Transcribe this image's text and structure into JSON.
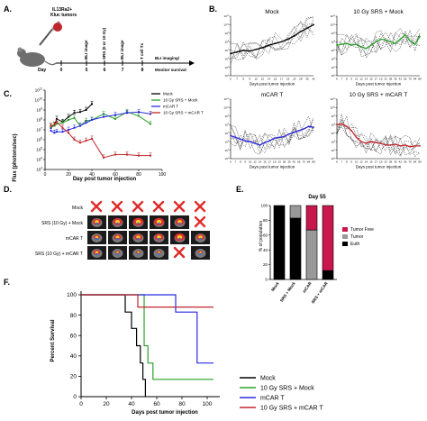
{
  "panels": {
    "A": {
      "letter": "A.",
      "cells": "IL13Ra2+",
      "tumors": "Kluc tumors",
      "day_label": "Day",
      "days": [
        "0",
        "5",
        "6",
        "7",
        "8"
      ],
      "events": [
        "BLI image",
        "SRS (0 or 10 Gy)",
        "BLI image",
        "T cell Tx"
      ],
      "monitor_1": "BLI imaging/",
      "monitor_2": "Monitor survival"
    },
    "B": {
      "letter": "B.",
      "xlabel": "Days post tumor injection",
      "xticks": [
        "6",
        "7",
        "8",
        "9",
        "10",
        "12",
        "14",
        "15",
        "17",
        "19",
        "23",
        "28",
        "35",
        "42"
      ],
      "xticks_long": [
        "6",
        "7",
        "8",
        "9",
        "10",
        "12",
        "14",
        "15",
        "17",
        "19",
        "23",
        "28",
        "35",
        "42",
        "56",
        "70",
        "84",
        "89"
      ],
      "yticks": [
        "10^4",
        "10^5",
        "10^6",
        "10^7",
        "10^8",
        "10^9",
        "10^10",
        "10^11"
      ]
    },
    "C": {
      "letter": "C.",
      "ylabel": "Flux (photons/sec)",
      "xlabel": "Day post tumor injection",
      "yticks": [
        "10^11",
        "10^10",
        "10^9",
        "10^8",
        "10^7",
        "10^6",
        "10^5",
        "10^4",
        "10^3"
      ],
      "xticks": [
        "0",
        "20",
        "40",
        "60",
        "80",
        "100"
      ]
    },
    "D": {
      "letter": "D.",
      "rows": [
        "Mock",
        "SRS (10 Gy) + Mock",
        "mCAR T",
        "SRS (10 Gy) + mCAR T"
      ]
    },
    "E": {
      "letter": "E.",
      "title": "Day 55",
      "ylabel": "% of population",
      "yticks": [
        "100",
        "80",
        "60",
        "40",
        "20",
        "0"
      ],
      "legend": [
        "Tumor Free",
        "Tumor",
        "Euth"
      ]
    },
    "F": {
      "letter": "F.",
      "ylabel": "Percent Survival",
      "xlabel": "Days post tumor injection",
      "yticks": [
        "100",
        "80",
        "60",
        "40",
        "20",
        "0"
      ],
      "xticks": [
        "0",
        "20",
        "40",
        "60",
        "80",
        "100"
      ]
    }
  },
  "colors": {
    "mock": "#000000",
    "srs_mock": "#2ca02c",
    "mcar": "#2a2ae0",
    "srs_mcar": "#c0262c",
    "tumor_free": "#c8174d",
    "tumor": "#999999",
    "euth": "#000000",
    "x_mark": "#e02b2b"
  },
  "chart_data": [
    {
      "panel": "B",
      "type": "line",
      "subplots": [
        {
          "title": "Mock",
          "mean_color": "mock",
          "x": [
            6,
            7,
            8,
            9,
            10,
            12,
            14,
            15,
            17,
            19,
            23,
            28,
            35,
            42
          ],
          "mean_log10": [
            6.6,
            6.8,
            7.0,
            6.9,
            7.1,
            7.3,
            7.6,
            7.8,
            8.0,
            8.3,
            8.7,
            9.2,
            9.6,
            10.0
          ]
        },
        {
          "title": "10 Gy SRS + Mock",
          "mean_color": "srs_mock",
          "x": [
            6,
            7,
            8,
            9,
            10,
            12,
            14,
            15,
            17,
            19,
            23,
            28,
            35,
            42,
            56,
            70,
            84,
            89
          ],
          "mean_log10": [
            7.6,
            7.7,
            7.8,
            7.6,
            7.7,
            7.4,
            7.2,
            7.6,
            8.0,
            8.3,
            8.2,
            8.0,
            7.8,
            8.3,
            8.8,
            8.1,
            7.7,
            8.6
          ]
        },
        {
          "title": "mCAR T",
          "mean_color": "mcar",
          "x": [
            6,
            7,
            8,
            9,
            10,
            12,
            14,
            15,
            17,
            19,
            23,
            28,
            35,
            42,
            56,
            70,
            84,
            89
          ],
          "mean_log10": [
            6.7,
            6.5,
            6.3,
            6.1,
            6.0,
            5.8,
            5.6,
            5.9,
            6.1,
            6.4,
            6.5,
            6.6,
            6.9,
            7.1,
            7.3,
            7.5,
            7.8,
            7.7
          ]
        },
        {
          "title": "10 Gy SRS + mCAR T",
          "mean_color": "srs_mcar",
          "x": [
            6,
            7,
            8,
            9,
            10,
            12,
            14,
            15,
            17,
            19,
            23,
            28,
            35,
            42,
            56,
            70,
            84,
            89
          ],
          "mean_log10": [
            8.0,
            8.1,
            7.8,
            7.3,
            6.5,
            6.0,
            5.8,
            6.0,
            5.9,
            5.8,
            5.6,
            5.6,
            5.7,
            5.5,
            5.6,
            5.4,
            5.5,
            5.5
          ]
        }
      ]
    },
    {
      "panel": "C",
      "type": "line",
      "xlabel": "Day post tumor injection",
      "ylabel": "Flux (photons/sec)",
      "xlim": [
        0,
        100
      ],
      "ylim_log10": [
        3,
        11
      ],
      "series": [
        {
          "name": "Mock",
          "color": "mock",
          "x": [
            5,
            8,
            10,
            15,
            20,
            25,
            30,
            35,
            40
          ],
          "log10": [
            7.2,
            7.5,
            8.1,
            7.8,
            8.3,
            8.7,
            8.8,
            9.0,
            9.6
          ]
        },
        {
          "name": "10 Gy SRS + Mock",
          "color": "srs_mock",
          "x": [
            5,
            8,
            10,
            15,
            20,
            25,
            30,
            35,
            40,
            50,
            60,
            70,
            80,
            90
          ],
          "log10": [
            7.3,
            7.4,
            7.6,
            7.7,
            8.0,
            8.2,
            7.4,
            7.9,
            8.0,
            8.6,
            8.1,
            8.8,
            8.4,
            7.6
          ]
        },
        {
          "name": "mCAR T",
          "color": "mcar",
          "x": [
            5,
            8,
            10,
            15,
            20,
            25,
            30,
            35,
            40,
            50,
            60,
            70,
            80,
            90
          ],
          "log10": [
            6.9,
            6.7,
            6.8,
            6.8,
            7.0,
            7.2,
            7.4,
            7.7,
            8.0,
            8.3,
            8.5,
            8.7,
            8.8,
            8.6
          ]
        },
        {
          "name": "10 Gy SRS + mCAR T",
          "color": "srs_mcar",
          "x": [
            5,
            8,
            10,
            15,
            20,
            25,
            30,
            35,
            40,
            50,
            60,
            70,
            80,
            90
          ],
          "log10": [
            7.4,
            7.5,
            7.8,
            7.2,
            6.7,
            6.0,
            5.7,
            5.9,
            6.1,
            4.2,
            4.5,
            4.5,
            4.4,
            4.4
          ]
        }
      ]
    },
    {
      "panel": "E",
      "type": "bar",
      "title": "Day 55",
      "ylabel": "% of population",
      "categories": [
        "Mock",
        "SRS + Mock",
        "mCAR",
        "SRS + mCAR"
      ],
      "series": [
        {
          "name": "Euth",
          "color": "euth",
          "values": [
            100,
            83,
            0,
            12
          ]
        },
        {
          "name": "Tumor",
          "color": "tumor",
          "values": [
            0,
            17,
            67,
            0
          ]
        },
        {
          "name": "Tumor Free",
          "color": "tumor_free",
          "values": [
            0,
            0,
            33,
            88
          ]
        }
      ],
      "ylim": [
        0,
        100
      ]
    },
    {
      "panel": "F",
      "type": "line",
      "xlabel": "Days post tumor injection",
      "ylabel": "Percent Survival",
      "xlim": [
        0,
        110
      ],
      "ylim": [
        0,
        100
      ],
      "series": [
        {
          "name": "Mock",
          "color": "mock",
          "x": [
            0,
            35,
            35,
            40,
            40,
            44,
            44,
            47,
            47,
            49,
            49,
            51,
            51
          ],
          "y": [
            100,
            100,
            83,
            83,
            67,
            67,
            50,
            50,
            33,
            33,
            17,
            17,
            0
          ]
        },
        {
          "name": "10 Gy SRS + Mock",
          "color": "srs_mock",
          "x": [
            0,
            50,
            50,
            53,
            53,
            57,
            57,
            105
          ],
          "y": [
            100,
            100,
            50,
            50,
            33,
            33,
            17,
            17
          ]
        },
        {
          "name": "mCAR T",
          "color": "mcar",
          "x": [
            0,
            75,
            75,
            92,
            92,
            105
          ],
          "y": [
            100,
            100,
            83,
            83,
            33,
            33
          ]
        },
        {
          "name": "10 Gy SRS + mCAR T",
          "color": "srs_mcar",
          "x": [
            0,
            45,
            45,
            105
          ],
          "y": [
            100,
            100,
            88,
            88
          ]
        }
      ]
    }
  ]
}
